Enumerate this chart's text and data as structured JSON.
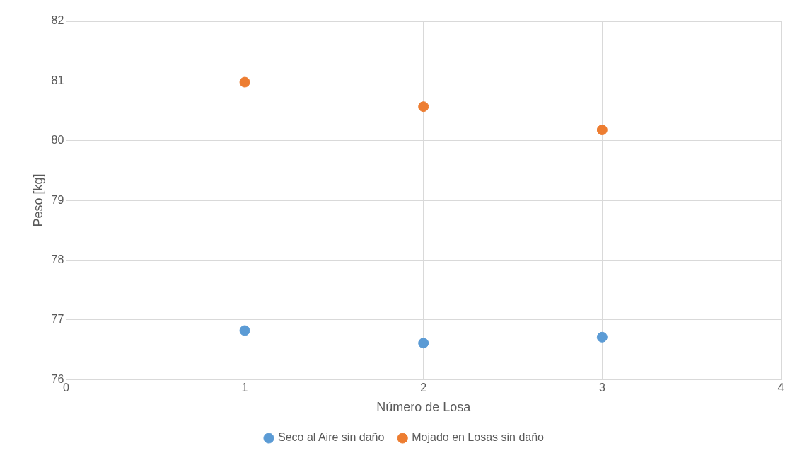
{
  "chart_data": {
    "type": "scatter",
    "xlabel": "Número de Losa",
    "ylabel": "Peso [kg]",
    "xlim": [
      0,
      4
    ],
    "xticks": [
      0,
      1,
      2,
      3,
      4
    ],
    "ylim": [
      76,
      82
    ],
    "yticks": [
      76,
      77,
      78,
      79,
      80,
      81,
      82
    ],
    "x": [
      1,
      2,
      3
    ],
    "series": [
      {
        "name": "Seco al Aire sin daño",
        "color": "#5b9bd5",
        "values": [
          76.82,
          76.61,
          76.71
        ]
      },
      {
        "name": "Mojado en Losas sin daño",
        "color": "#ed7d31",
        "values": [
          80.98,
          80.57,
          80.18
        ]
      }
    ],
    "grid": true,
    "legend": "bottom",
    "marker": "circle"
  }
}
